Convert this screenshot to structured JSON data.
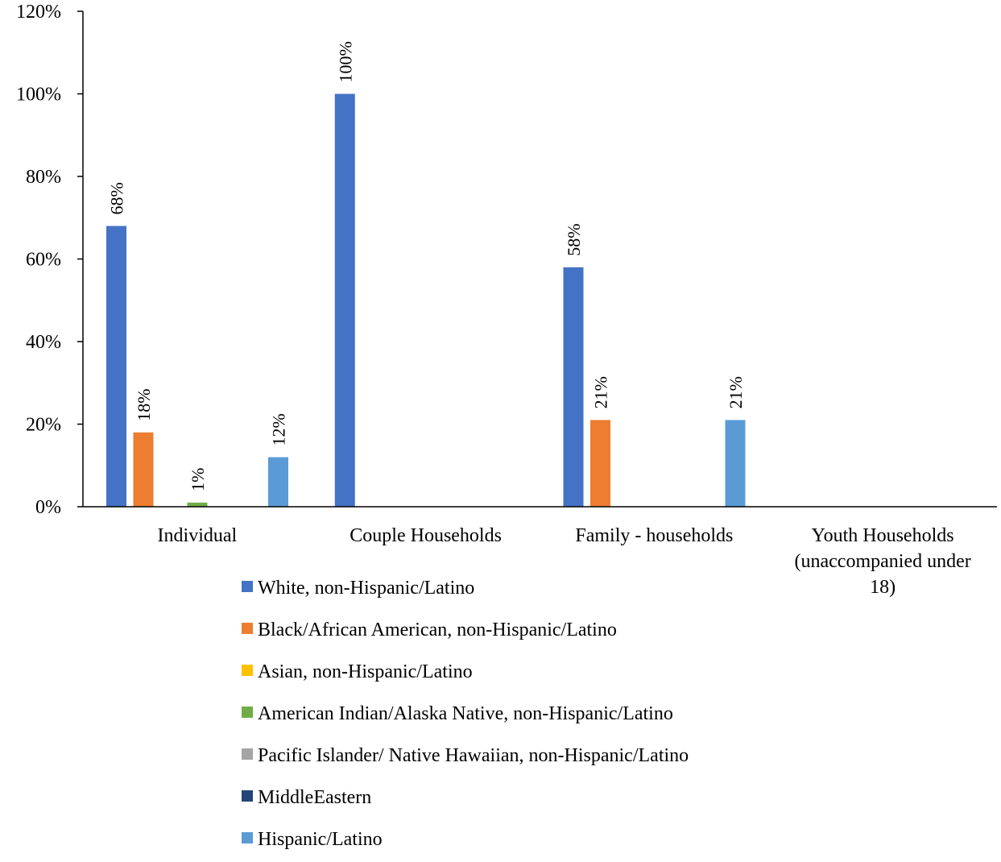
{
  "chart_data": {
    "type": "bar",
    "title": "",
    "xlabel": "",
    "ylabel": "",
    "ylim": [
      0,
      1.2
    ],
    "y_ticks": [
      "0%",
      "20%",
      "40%",
      "60%",
      "80%",
      "100%",
      "120%"
    ],
    "y_tick_values": [
      0,
      0.2,
      0.4,
      0.6,
      0.8,
      1.0,
      1.2
    ],
    "grid": false,
    "legend_position": "bottom",
    "categories": [
      [
        "Individual"
      ],
      [
        "Couple Households"
      ],
      [
        "Family - households"
      ],
      [
        "Youth Households",
        "(unaccompanied under",
        "18)"
      ]
    ],
    "series": [
      {
        "name": "White, non-Hispanic/Latino",
        "color": "#4472C4",
        "values": [
          0.68,
          1.0,
          0.58,
          0
        ],
        "labels": [
          "68%",
          "100%",
          "58%",
          ""
        ]
      },
      {
        "name": "Black/African American, non-Hispanic/Latino",
        "color": "#ED7D31",
        "values": [
          0.18,
          0,
          0.21,
          0
        ],
        "labels": [
          "18%",
          "",
          "21%",
          ""
        ]
      },
      {
        "name": "Asian, non-Hispanic/Latino",
        "color": "#FFC000",
        "values": [
          0,
          0,
          0,
          0
        ],
        "labels": [
          "",
          "",
          "",
          ""
        ]
      },
      {
        "name": "American Indian/Alaska Native, non-Hispanic/Latino",
        "color": "#70AD47",
        "values": [
          0.01,
          0,
          0,
          0
        ],
        "labels": [
          "1%",
          "",
          "",
          ""
        ]
      },
      {
        "name": "Pacific Islander/ Native Hawaiian, non-Hispanic/Latino",
        "color": "#A5A5A5",
        "values": [
          0,
          0,
          0,
          0
        ],
        "labels": [
          "",
          "",
          "",
          ""
        ]
      },
      {
        "name": "MiddleEastern",
        "color": "#264478",
        "values": [
          0,
          0,
          0,
          0
        ],
        "labels": [
          "",
          "",
          "",
          ""
        ]
      },
      {
        "name": "Hispanic/Latino",
        "color": "#5B9BD5",
        "values": [
          0.12,
          0,
          0.21,
          0
        ],
        "labels": [
          "12%",
          "",
          "21%",
          ""
        ]
      }
    ]
  }
}
